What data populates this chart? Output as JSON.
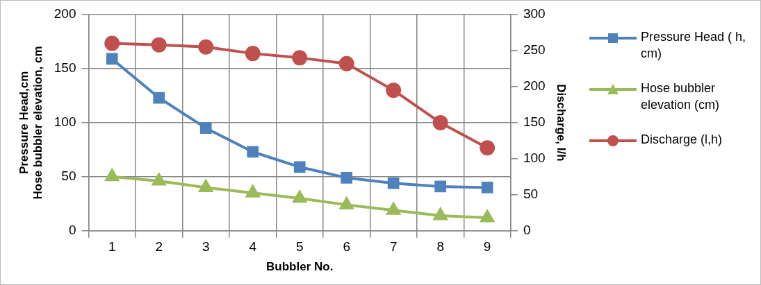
{
  "chart_data": {
    "type": "line",
    "xlabel": "Bubbler No.",
    "ylabel": "Pressure Head,cm\nHose bubbler elevation, cm",
    "y2label": "Discharge, l/h",
    "categories": [
      "1",
      "2",
      "3",
      "4",
      "5",
      "6",
      "7",
      "8",
      "9"
    ],
    "series": [
      {
        "name": "Pressure Head ( h, cm)",
        "color": "#4f81bd",
        "marker": "square",
        "values": [
          159,
          123,
          95,
          73,
          59,
          49,
          44,
          41,
          40
        ]
      },
      {
        "name": "Hose bubbler elevation (cm)",
        "color": "#9bbb59",
        "marker": "triangle",
        "values": [
          50,
          46,
          40,
          35,
          30,
          24,
          19,
          14,
          12
        ]
      },
      {
        "name": "Discharge  (l,h)",
        "color": "#c0504d",
        "marker": "circle",
        "axis": "y2",
        "values": [
          260,
          258,
          255,
          246,
          240,
          232,
          195,
          150,
          115
        ]
      }
    ],
    "ylim": [
      0,
      200
    ],
    "yticks": [
      0,
      50,
      100,
      150,
      200
    ],
    "y2lim": [
      0,
      300
    ],
    "y2ticks": [
      0,
      50,
      100,
      150,
      200,
      250,
      300
    ],
    "grid": true,
    "legend": "right",
    "line_style": "solid"
  }
}
